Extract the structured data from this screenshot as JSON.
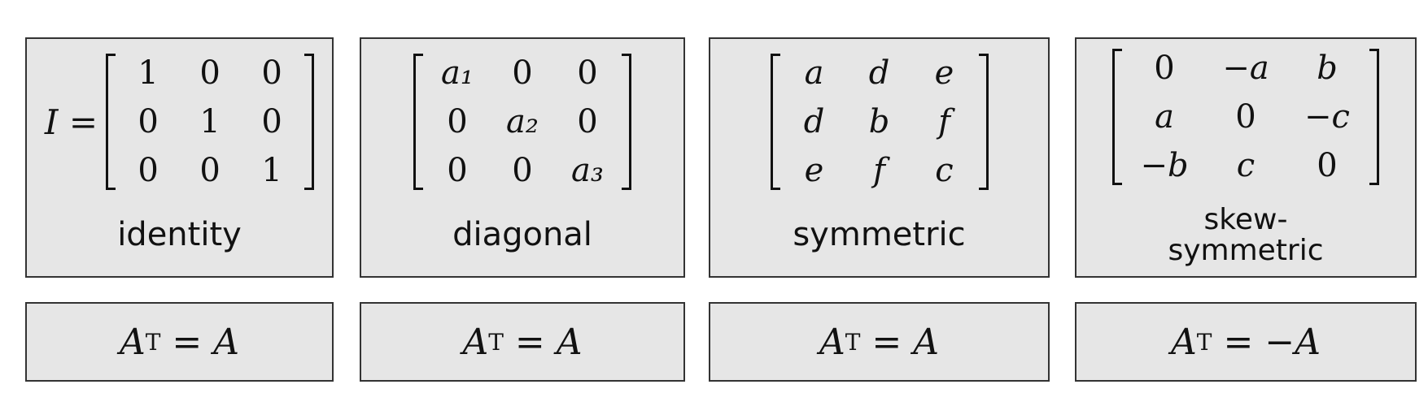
{
  "cards": [
    {
      "lhs": "I =",
      "matrix": [
        [
          "1",
          "0",
          "0"
        ],
        [
          "0",
          "1",
          "0"
        ],
        [
          "0",
          "0",
          "1"
        ]
      ],
      "label": "identity",
      "formula": {
        "var": "A",
        "sup": "T",
        "op": "=",
        "rhs": "A"
      }
    },
    {
      "matrix": [
        [
          "a₁",
          "0",
          "0"
        ],
        [
          "0",
          "a₂",
          "0"
        ],
        [
          "0",
          "0",
          "a₃"
        ]
      ],
      "label": "diagonal",
      "formula": {
        "var": "A",
        "sup": "T",
        "op": "=",
        "rhs": "A"
      }
    },
    {
      "matrix": [
        [
          "a",
          "d",
          "e"
        ],
        [
          "d",
          "b",
          "f"
        ],
        [
          "e",
          "f",
          "c"
        ]
      ],
      "label": "symmetric",
      "formula": {
        "var": "A",
        "sup": "T",
        "op": "=",
        "rhs": "A"
      }
    },
    {
      "matrix": [
        [
          "0",
          "−a",
          "b"
        ],
        [
          "a",
          "0",
          "−c"
        ],
        [
          "−b",
          "c",
          "0"
        ]
      ],
      "label_lines": [
        "skew-",
        "symmetric"
      ],
      "formula": {
        "var": "A",
        "sup": "T",
        "op": "=",
        "rhs": "−A"
      }
    }
  ]
}
